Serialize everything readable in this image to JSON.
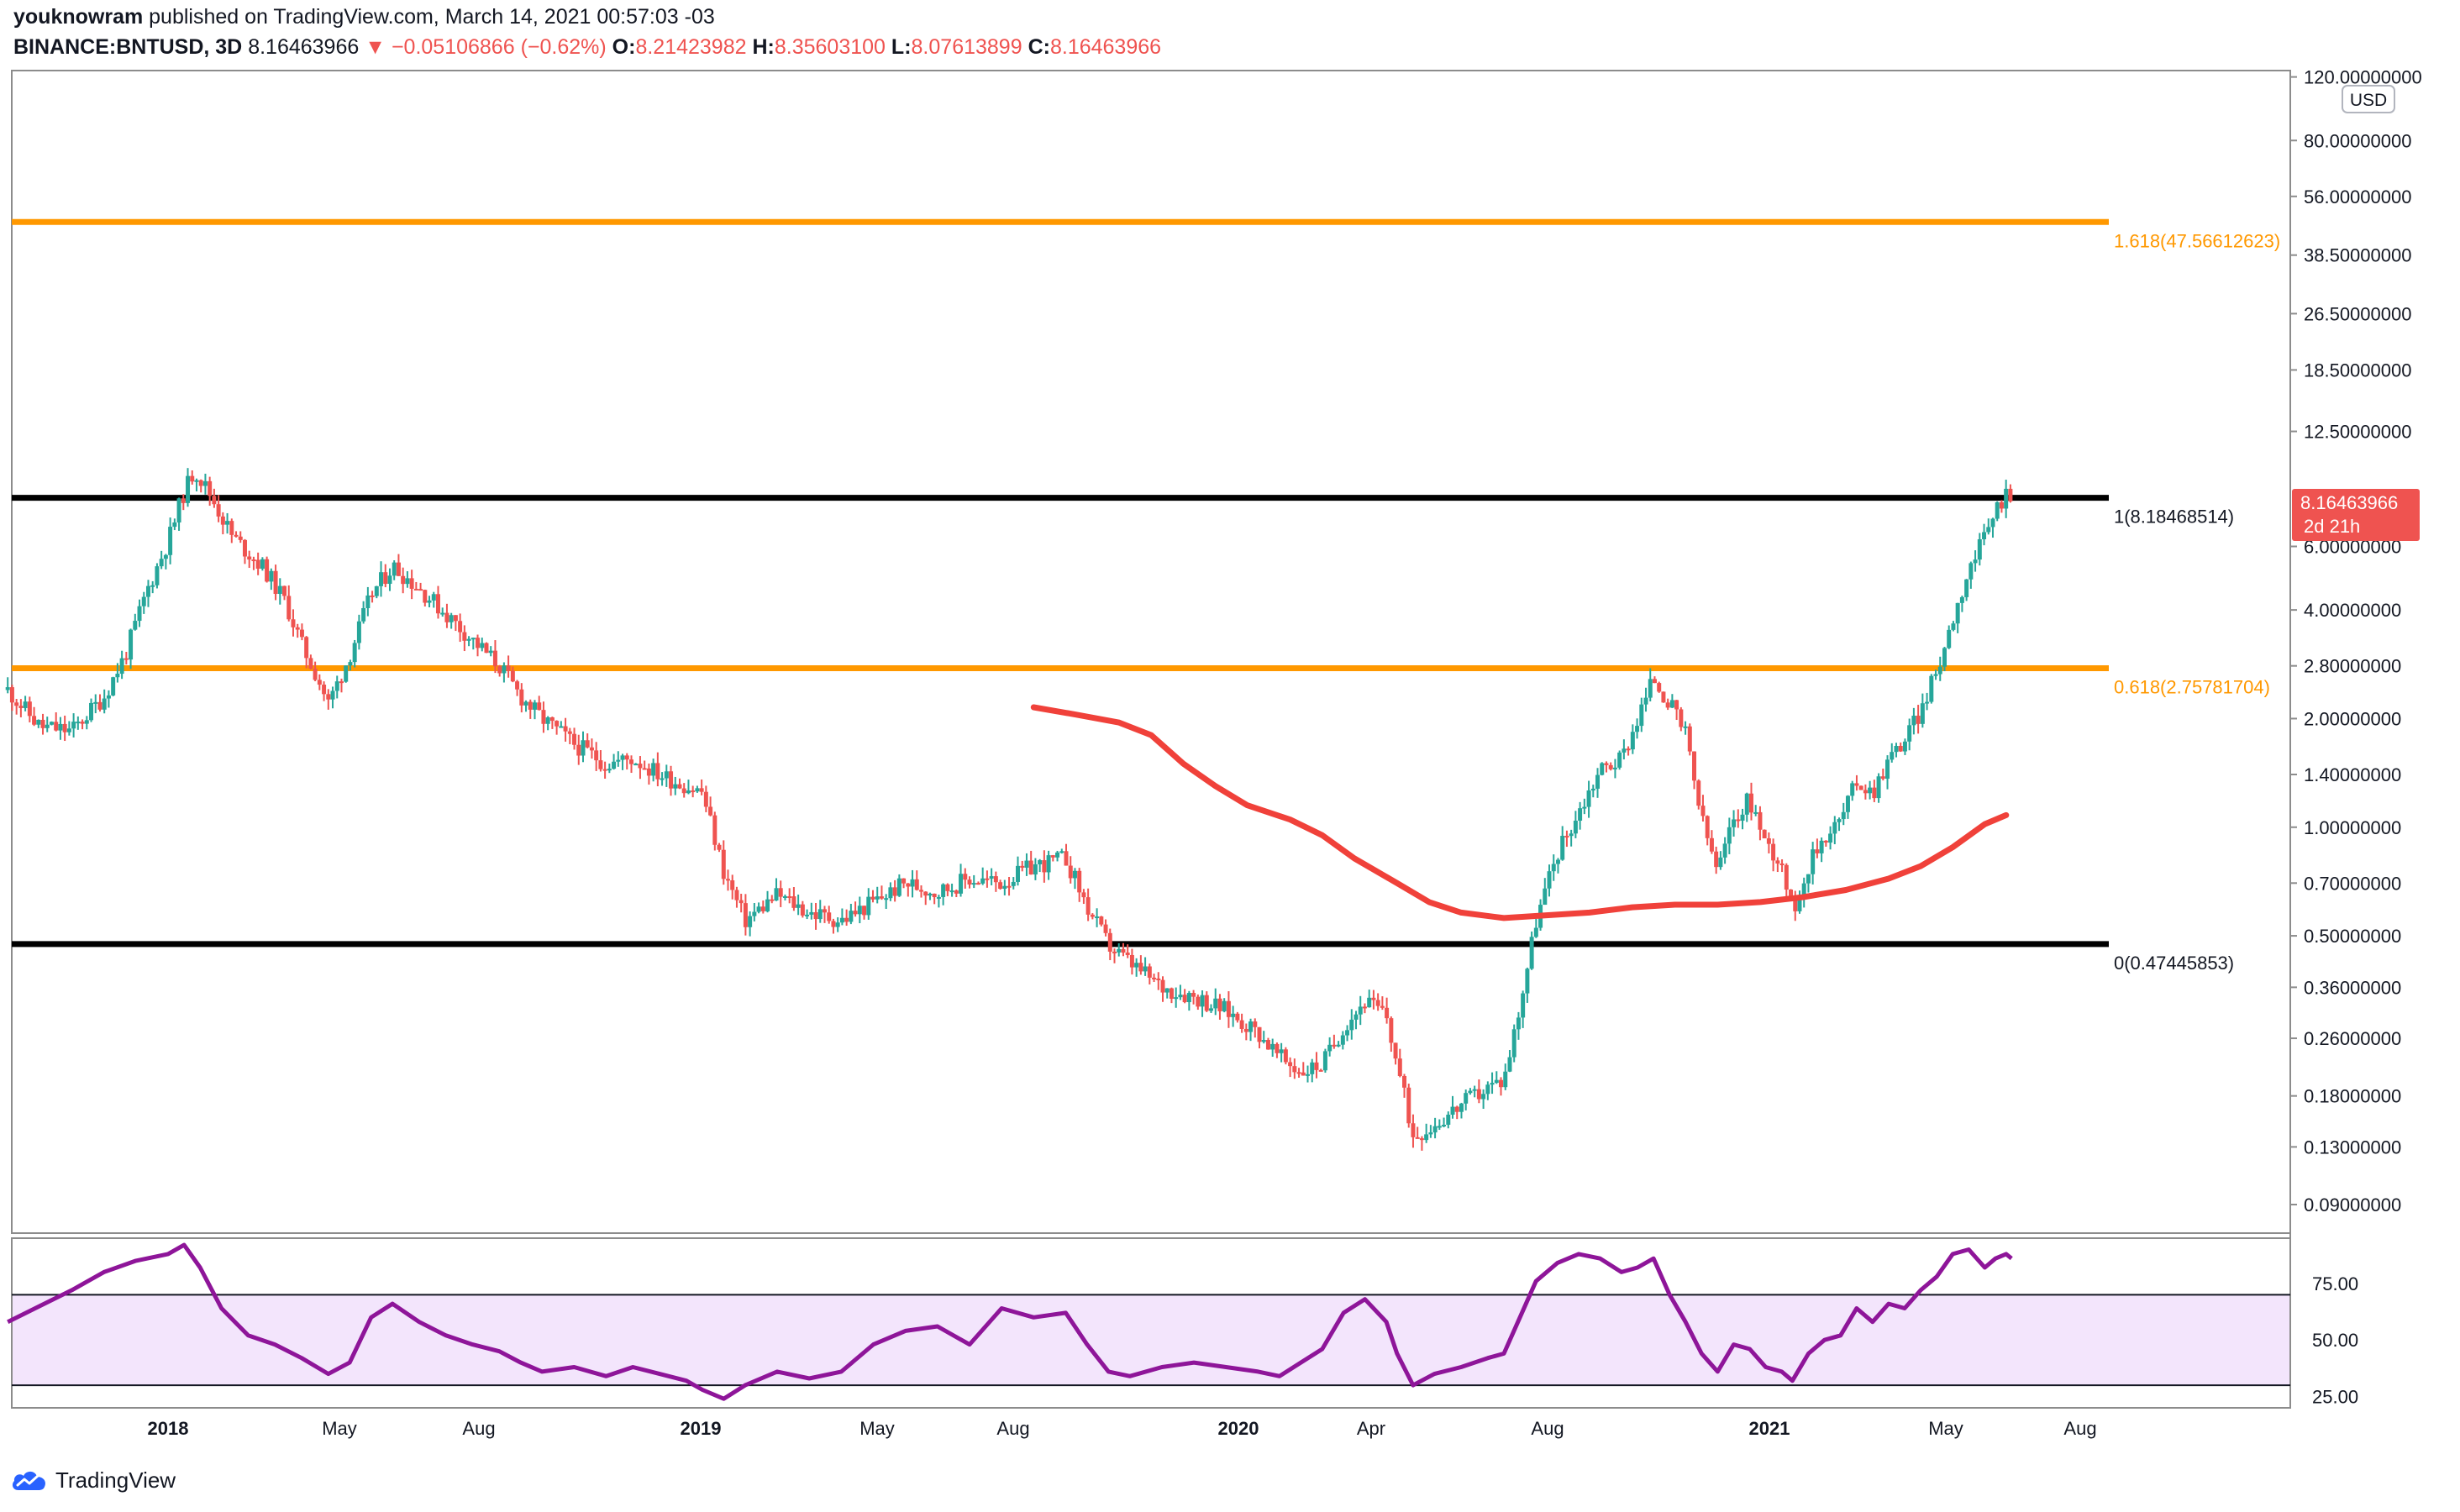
{
  "header": {
    "author": "youknowram",
    "published_text": "published on TradingView.com, March 14, 2021 00:57:03 -03",
    "symbol": "BINANCE:BNTUSD, 3D",
    "last": "8.16463966",
    "change_arrow": "▼",
    "change": "−0.05106866 (−0.62%)",
    "o_label": "O:",
    "o_value": "8.21423982",
    "h_label": "H:",
    "h_value": "8.35603100",
    "l_label": "L:",
    "l_value": "8.07613899",
    "c_label": "C:",
    "c_value": "8.16463966"
  },
  "footer": {
    "brand": "TradingView"
  },
  "colors": {
    "up": "#26a69a",
    "down": "#ef5350",
    "ma": "#f0413a",
    "fib_orange": "#ff9800",
    "level_black": "#000000",
    "rsi_line": "#8e1599",
    "rsi_band": "#f3e5fc"
  },
  "chart_data": {
    "type": "candlestick",
    "scale": "log",
    "currency": "USD",
    "ylim": [
      0.075,
      125
    ],
    "price_ticks": [
      "120.00000000",
      "80.00000000",
      "56.00000000",
      "38.50000000",
      "26.50000000",
      "18.50000000",
      "12.50000000",
      "6.00000000",
      "4.00000000",
      "2.80000000",
      "2.00000000",
      "1.40000000",
      "1.00000000",
      "0.70000000",
      "0.50000000",
      "0.36000000",
      "0.26000000",
      "0.18000000",
      "0.13000000",
      "0.09000000"
    ],
    "x_ticks": [
      "2018",
      "May",
      "Aug",
      "2019",
      "May",
      "Aug",
      "2020",
      "Apr",
      "Aug",
      "2021",
      "May",
      "Aug"
    ],
    "levels": [
      {
        "label": "1.618(47.56612623)",
        "price": 47.566,
        "color": "#ff9800"
      },
      {
        "label": "1(8.18468514)",
        "price": 8.1847,
        "color": "#000000"
      },
      {
        "label": "0.618(2.75781704)",
        "price": 2.7578,
        "color": "#ff9800"
      },
      {
        "label": "0(0.47445853)",
        "price": 0.47446,
        "color": "#000000"
      }
    ],
    "last_price_label": "8.16463966",
    "countdown_label": "2d 21h",
    "price_path": [
      [
        2017.7,
        2.4
      ],
      [
        2017.76,
        1.9
      ],
      [
        2017.82,
        1.85
      ],
      [
        2017.88,
        2.3
      ],
      [
        2017.92,
        3.0
      ],
      [
        2017.96,
        4.5
      ],
      [
        2018.0,
        6.2
      ],
      [
        2018.03,
        8.5
      ],
      [
        2018.05,
        9.8
      ],
      [
        2018.08,
        8.3
      ],
      [
        2018.12,
        6.4
      ],
      [
        2018.18,
        5.2
      ],
      [
        2018.22,
        4.2
      ],
      [
        2018.25,
        3.2
      ],
      [
        2018.28,
        2.6
      ],
      [
        2018.3,
        2.2
      ],
      [
        2018.34,
        3.0
      ],
      [
        2018.38,
        4.4
      ],
      [
        2018.42,
        5.3
      ],
      [
        2018.47,
        4.6
      ],
      [
        2018.52,
        3.9
      ],
      [
        2018.57,
        3.3
      ],
      [
        2018.62,
        2.8
      ],
      [
        2018.66,
        2.3
      ],
      [
        2018.7,
        2.0
      ],
      [
        2018.76,
        1.7
      ],
      [
        2018.82,
        1.5
      ],
      [
        2018.87,
        1.55
      ],
      [
        2018.92,
        1.4
      ],
      [
        2018.97,
        1.3
      ],
      [
        2019.0,
        1.25
      ],
      [
        2019.04,
        0.75
      ],
      [
        2019.08,
        0.55
      ],
      [
        2019.14,
        0.65
      ],
      [
        2019.2,
        0.58
      ],
      [
        2019.26,
        0.55
      ],
      [
        2019.32,
        0.62
      ],
      [
        2019.38,
        0.7
      ],
      [
        2019.44,
        0.66
      ],
      [
        2019.5,
        0.72
      ],
      [
        2019.56,
        0.7
      ],
      [
        2019.62,
        0.78
      ],
      [
        2019.68,
        0.82
      ],
      [
        2019.72,
        0.6
      ],
      [
        2019.76,
        0.47
      ],
      [
        2019.8,
        0.42
      ],
      [
        2019.86,
        0.36
      ],
      [
        2019.92,
        0.34
      ],
      [
        2019.98,
        0.31
      ],
      [
        2020.04,
        0.27
      ],
      [
        2020.08,
        0.23
      ],
      [
        2020.12,
        0.21
      ],
      [
        2020.16,
        0.22
      ],
      [
        2020.2,
        0.28
      ],
      [
        2020.24,
        0.33
      ],
      [
        2020.28,
        0.3
      ],
      [
        2020.3,
        0.22
      ],
      [
        2020.33,
        0.14
      ],
      [
        2020.37,
        0.15
      ],
      [
        2020.42,
        0.17
      ],
      [
        2020.47,
        0.19
      ],
      [
        2020.5,
        0.2
      ],
      [
        2020.53,
        0.32
      ],
      [
        2020.56,
        0.55
      ],
      [
        2020.6,
        0.85
      ],
      [
        2020.64,
        1.1
      ],
      [
        2020.68,
        1.45
      ],
      [
        2020.72,
        1.55
      ],
      [
        2020.75,
        2.0
      ],
      [
        2020.78,
        2.6
      ],
      [
        2020.81,
        2.2
      ],
      [
        2020.84,
        1.8
      ],
      [
        2020.87,
        1.05
      ],
      [
        2020.9,
        0.75
      ],
      [
        2020.93,
        1.05
      ],
      [
        2020.96,
        1.2
      ],
      [
        2020.99,
        0.9
      ],
      [
        2021.02,
        0.8
      ],
      [
        2021.04,
        0.58
      ],
      [
        2021.07,
        0.78
      ],
      [
        2021.1,
        0.95
      ],
      [
        2021.13,
        1.05
      ],
      [
        2021.16,
        1.35
      ],
      [
        2021.19,
        1.25
      ],
      [
        2021.22,
        1.55
      ],
      [
        2021.25,
        1.75
      ],
      [
        2021.28,
        2.1
      ],
      [
        2021.31,
        2.7
      ],
      [
        2021.34,
        3.8
      ],
      [
        2021.37,
        5.2
      ],
      [
        2021.4,
        6.3
      ],
      [
        2021.42,
        7.6
      ],
      [
        2021.44,
        8.4
      ],
      [
        2021.45,
        8.16
      ]
    ],
    "ma_path": [
      [
        2019.62,
        2.15
      ],
      [
        2019.7,
        2.05
      ],
      [
        2019.78,
        1.95
      ],
      [
        2019.84,
        1.8
      ],
      [
        2019.9,
        1.5
      ],
      [
        2019.96,
        1.3
      ],
      [
        2020.02,
        1.15
      ],
      [
        2020.1,
        1.05
      ],
      [
        2020.16,
        0.95
      ],
      [
        2020.22,
        0.82
      ],
      [
        2020.3,
        0.7
      ],
      [
        2020.36,
        0.62
      ],
      [
        2020.42,
        0.58
      ],
      [
        2020.5,
        0.56
      ],
      [
        2020.58,
        0.57
      ],
      [
        2020.66,
        0.58
      ],
      [
        2020.74,
        0.6
      ],
      [
        2020.82,
        0.61
      ],
      [
        2020.9,
        0.61
      ],
      [
        2020.98,
        0.62
      ],
      [
        2021.06,
        0.64
      ],
      [
        2021.14,
        0.67
      ],
      [
        2021.22,
        0.72
      ],
      [
        2021.28,
        0.78
      ],
      [
        2021.34,
        0.88
      ],
      [
        2021.4,
        1.02
      ],
      [
        2021.44,
        1.08
      ]
    ],
    "rsi": {
      "ticks": [
        "75.00",
        "50.00",
        "25.00"
      ],
      "upper": 70,
      "lower": 30,
      "ylim": [
        20,
        95
      ],
      "path": [
        [
          2017.7,
          58
        ],
        [
          2017.76,
          65
        ],
        [
          2017.82,
          72
        ],
        [
          2017.88,
          80
        ],
        [
          2017.94,
          85
        ],
        [
          2018.0,
          88
        ],
        [
          2018.03,
          92
        ],
        [
          2018.06,
          82
        ],
        [
          2018.1,
          64
        ],
        [
          2018.15,
          52
        ],
        [
          2018.2,
          48
        ],
        [
          2018.25,
          42
        ],
        [
          2018.3,
          35
        ],
        [
          2018.34,
          40
        ],
        [
          2018.38,
          60
        ],
        [
          2018.42,
          66
        ],
        [
          2018.47,
          58
        ],
        [
          2018.52,
          52
        ],
        [
          2018.57,
          48
        ],
        [
          2018.62,
          45
        ],
        [
          2018.66,
          40
        ],
        [
          2018.7,
          36
        ],
        [
          2018.76,
          38
        ],
        [
          2018.82,
          34
        ],
        [
          2018.87,
          38
        ],
        [
          2018.92,
          35
        ],
        [
          2018.97,
          32
        ],
        [
          2019.0,
          28
        ],
        [
          2019.04,
          24
        ],
        [
          2019.08,
          30
        ],
        [
          2019.14,
          36
        ],
        [
          2019.2,
          33
        ],
        [
          2019.26,
          36
        ],
        [
          2019.32,
          48
        ],
        [
          2019.38,
          54
        ],
        [
          2019.44,
          56
        ],
        [
          2019.5,
          48
        ],
        [
          2019.56,
          64
        ],
        [
          2019.62,
          60
        ],
        [
          2019.68,
          62
        ],
        [
          2019.72,
          48
        ],
        [
          2019.76,
          36
        ],
        [
          2019.8,
          34
        ],
        [
          2019.86,
          38
        ],
        [
          2019.92,
          40
        ],
        [
          2019.98,
          38
        ],
        [
          2020.04,
          36
        ],
        [
          2020.08,
          34
        ],
        [
          2020.12,
          40
        ],
        [
          2020.16,
          46
        ],
        [
          2020.2,
          62
        ],
        [
          2020.24,
          68
        ],
        [
          2020.28,
          58
        ],
        [
          2020.3,
          44
        ],
        [
          2020.33,
          30
        ],
        [
          2020.37,
          35
        ],
        [
          2020.42,
          38
        ],
        [
          2020.47,
          42
        ],
        [
          2020.5,
          44
        ],
        [
          2020.53,
          60
        ],
        [
          2020.56,
          76
        ],
        [
          2020.6,
          84
        ],
        [
          2020.64,
          88
        ],
        [
          2020.68,
          86
        ],
        [
          2020.72,
          80
        ],
        [
          2020.75,
          82
        ],
        [
          2020.78,
          86
        ],
        [
          2020.81,
          70
        ],
        [
          2020.84,
          58
        ],
        [
          2020.87,
          44
        ],
        [
          2020.9,
          36
        ],
        [
          2020.93,
          48
        ],
        [
          2020.96,
          46
        ],
        [
          2020.99,
          38
        ],
        [
          2021.02,
          36
        ],
        [
          2021.04,
          32
        ],
        [
          2021.07,
          44
        ],
        [
          2021.1,
          50
        ],
        [
          2021.13,
          52
        ],
        [
          2021.16,
          64
        ],
        [
          2021.19,
          58
        ],
        [
          2021.22,
          66
        ],
        [
          2021.25,
          64
        ],
        [
          2021.28,
          72
        ],
        [
          2021.31,
          78
        ],
        [
          2021.34,
          88
        ],
        [
          2021.37,
          90
        ],
        [
          2021.4,
          82
        ],
        [
          2021.42,
          86
        ],
        [
          2021.44,
          88
        ],
        [
          2021.45,
          86
        ]
      ]
    }
  }
}
